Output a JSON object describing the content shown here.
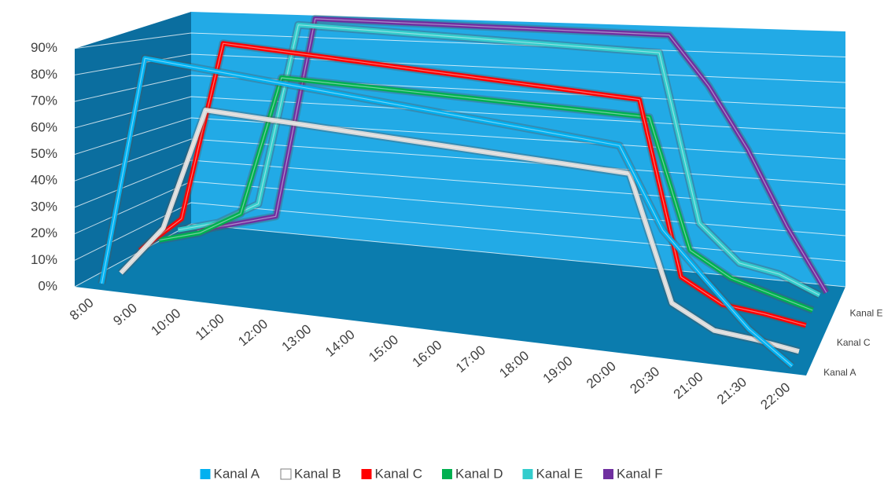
{
  "chart_data": {
    "type": "line3d",
    "categories": [
      "8:00",
      "9:00",
      "10:00",
      "11:00",
      "12:00",
      "13:00",
      "14:00",
      "15:00",
      "16:00",
      "17:00",
      "18:00",
      "19:00",
      "20:00",
      "20:30",
      "21:00",
      "21:30",
      "22:00"
    ],
    "series": [
      {
        "name": "Kanal A",
        "color": "#00b0f0",
        "values": [
          0,
          90,
          90,
          90,
          90,
          90,
          90,
          90,
          90,
          90,
          90,
          90,
          90,
          55,
          35,
          15,
          0
        ]
      },
      {
        "name": "Kanal B",
        "color": "#d9d9d9",
        "values": [
          0,
          20,
          70,
          70,
          70,
          70,
          70,
          70,
          70,
          70,
          70,
          70,
          70,
          15,
          5,
          3,
          0
        ]
      },
      {
        "name": "Kanal C",
        "color": "#ff0000",
        "values": [
          5,
          20,
          95,
          95,
          95,
          95,
          95,
          95,
          95,
          95,
          95,
          95,
          95,
          20,
          10,
          8,
          5
        ]
      },
      {
        "name": "Kanal D",
        "color": "#00b050",
        "values": [
          5,
          10,
          20,
          80,
          80,
          80,
          80,
          80,
          80,
          80,
          80,
          80,
          80,
          25,
          15,
          10,
          5
        ]
      },
      {
        "name": "Kanal E",
        "color": "#33cccc",
        "values": [
          5,
          10,
          20,
          100,
          100,
          100,
          100,
          100,
          100,
          100,
          100,
          100,
          100,
          30,
          15,
          12,
          5
        ]
      },
      {
        "name": "Kanal F",
        "color": "#7030a0",
        "values": [
          0,
          5,
          10,
          100,
          100,
          100,
          100,
          100,
          100,
          100,
          100,
          100,
          100,
          80,
          55,
          25,
          0
        ]
      }
    ],
    "ylim": [
      0,
      100
    ],
    "yticks": [
      {
        "value": 0,
        "label": "0%"
      },
      {
        "value": 10,
        "label": "10%"
      },
      {
        "value": 20,
        "label": "20%"
      },
      {
        "value": 30,
        "label": "30%"
      },
      {
        "value": 40,
        "label": "40%"
      },
      {
        "value": 50,
        "label": "50%"
      },
      {
        "value": 60,
        "label": "60%"
      },
      {
        "value": 70,
        "label": "70%"
      },
      {
        "value": 80,
        "label": "80%"
      },
      {
        "value": 90,
        "label": "90%"
      }
    ],
    "grid": true,
    "legend": "bottom"
  }
}
